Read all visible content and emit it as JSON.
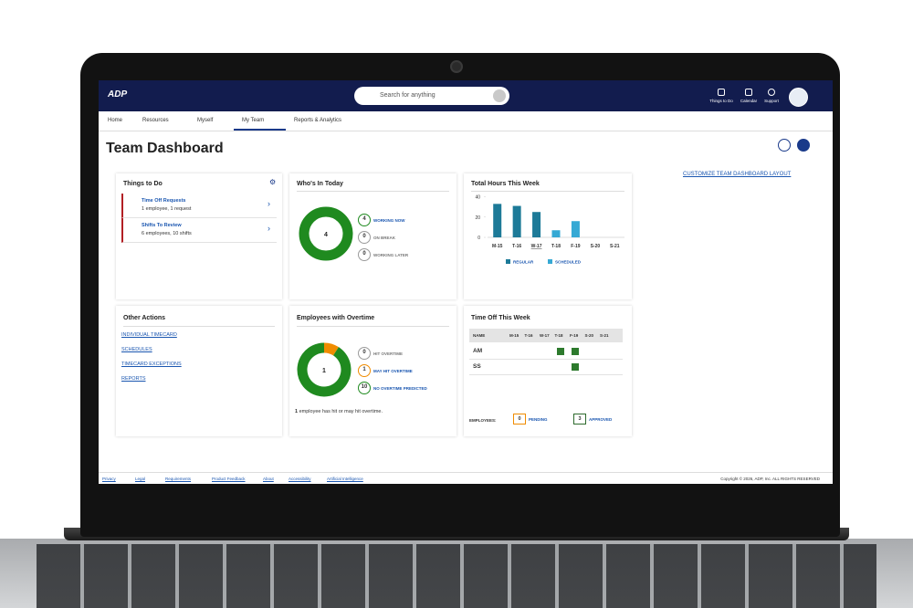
{
  "header": {
    "logo": "ADP",
    "search_placeholder": "Search for anything",
    "icons": [
      "Things to Do",
      "Calendar",
      "Support"
    ]
  },
  "nav": [
    "Home",
    "Resources",
    "Myself",
    "My Team",
    "Reports & Analytics"
  ],
  "page_title": "Team Dashboard",
  "customize_link": "CUSTOMIZE TEAM DASHBOARD LAYOUT",
  "things_to_do": {
    "title": "Things to Do",
    "items": [
      {
        "title": "Time Off Requests",
        "detail": "1 employee, 1 request"
      },
      {
        "title": "Shifts To Review",
        "detail": "6 employees, 10 shifts"
      }
    ]
  },
  "whos_in": {
    "title": "Who's In Today",
    "center": 4,
    "statuses": [
      {
        "count": 4,
        "label": "WORKING NOW",
        "color": "#1f8a1f"
      },
      {
        "count": 0,
        "label": "ON BREAK",
        "color": "#9a9a9a"
      },
      {
        "count": 0,
        "label": "WORKING LATER",
        "color": "#9a9a9a"
      }
    ]
  },
  "total_hours": {
    "title": "Total Hours This Week",
    "chart": {
      "type": "bar",
      "categories": [
        "M-15",
        "T-16",
        "W-17",
        "T-18",
        "F-19",
        "S-20",
        "S-21"
      ],
      "highlight_index": 2,
      "series": [
        {
          "name": "REGULAR",
          "color": "#1d7a98",
          "values": [
            33,
            31,
            25,
            null,
            null,
            null,
            null
          ]
        },
        {
          "name": "SCHEDULED",
          "color": "#36a9d4",
          "values": [
            null,
            null,
            null,
            7,
            16,
            null,
            null
          ]
        }
      ],
      "ylim": [
        0,
        45
      ],
      "yticks": [
        0,
        20,
        40
      ]
    }
  },
  "other_actions": {
    "title": "Other Actions",
    "links": [
      "INDIVIDUAL TIMECARD",
      "SCHEDULES",
      "TIMECARD EXCEPTIONS",
      "REPORTS"
    ]
  },
  "overtime": {
    "title": "Employees with Overtime",
    "center": 1,
    "statuses": [
      {
        "count": 0,
        "label": "HIT OVERTIME",
        "color": "#9a9a9a"
      },
      {
        "count": 1,
        "label": "MAY HIT OVERTIME",
        "color": "#f08c00"
      },
      {
        "count": 10,
        "label": "NO OVERTIME PREDICTED",
        "color": "#1f8a1f"
      }
    ],
    "note_count": 1,
    "note": "employee has hit or may hit overtime."
  },
  "time_off": {
    "title": "Time Off This Week",
    "name_header": "NAME",
    "days": [
      "M-15",
      "T-16",
      "W-17",
      "T-18",
      "F-19",
      "S-20",
      "S-21"
    ],
    "rows": [
      {
        "name": "AM",
        "off": [
          false,
          false,
          false,
          true,
          true,
          false,
          false
        ]
      },
      {
        "name": "SS",
        "off": [
          false,
          false,
          false,
          false,
          true,
          false,
          false
        ]
      }
    ],
    "legend_label": "EMPLOYEES:",
    "pending": {
      "count": 0,
      "label": "PENDING",
      "color": "#f08c00"
    },
    "approved": {
      "count": 3,
      "label": "APPROVED",
      "color": "#2d6a2d"
    },
    "off_color": "#2d7a2d"
  },
  "footer": {
    "links": [
      "Privacy",
      "Legal",
      "Requirements",
      "Product Feedback",
      "About",
      "Accessibility",
      "Artificial Intelligence"
    ],
    "copyright": "Copyright © 2026, ADP, Inc. ALL RIGHTS RESERVED"
  }
}
